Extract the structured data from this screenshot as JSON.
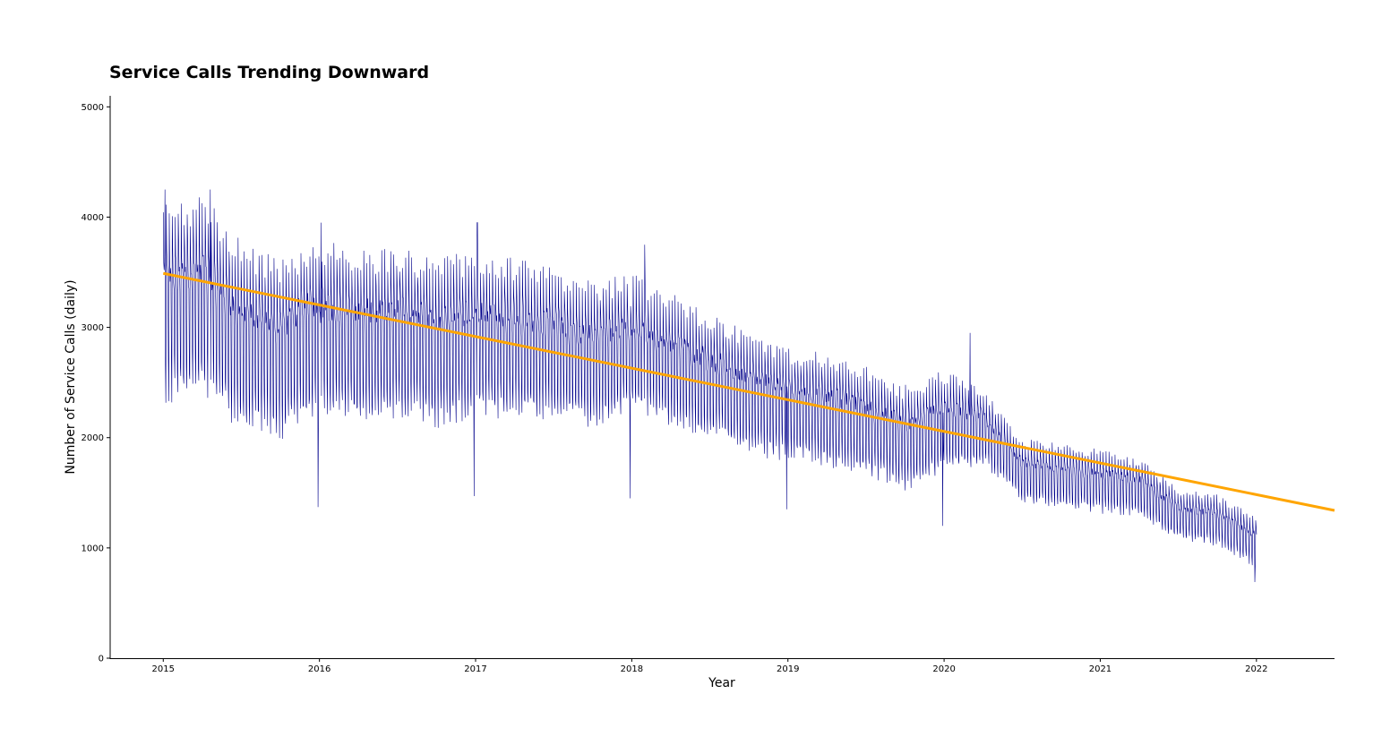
{
  "chart_data": {
    "type": "line",
    "title": "Service Calls Trending Downward",
    "xlabel": "Year",
    "ylabel": "Number of Service Calls (daily)",
    "xlim": [
      2014.66,
      2022.5
    ],
    "ylim": [
      0,
      5100
    ],
    "x_ticks": [
      2015,
      2016,
      2017,
      2018,
      2019,
      2020,
      2021,
      2022
    ],
    "x_tick_labels": [
      "2015",
      "2016",
      "2017",
      "2018",
      "2019",
      "2020",
      "2021",
      "2022"
    ],
    "y_ticks": [
      0,
      1000,
      2000,
      3000,
      4000,
      5000
    ],
    "y_tick_labels": [
      "0",
      "1000",
      "2000",
      "3000",
      "4000",
      "5000"
    ],
    "grid": false,
    "series": [
      {
        "role": "daily",
        "color": "#00008b",
        "x_start": "2015-01-01",
        "x_end": "2022-01-01",
        "weekly_oscillation": true,
        "baseline_by_month": [
          [
            "2015-01",
            3200
          ],
          [
            "2015-04",
            3300
          ],
          [
            "2015-07",
            2900
          ],
          [
            "2015-10",
            2800
          ],
          [
            "2016-01",
            3000
          ],
          [
            "2016-04",
            2900
          ],
          [
            "2016-07",
            2950
          ],
          [
            "2016-10",
            2850
          ],
          [
            "2017-01",
            2950
          ],
          [
            "2017-04",
            2900
          ],
          [
            "2017-07",
            2850
          ],
          [
            "2017-10",
            2750
          ],
          [
            "2018-01",
            2850
          ],
          [
            "2018-04",
            2700
          ],
          [
            "2018-07",
            2550
          ],
          [
            "2018-10",
            2400
          ],
          [
            "2019-01",
            2300
          ],
          [
            "2019-04",
            2250
          ],
          [
            "2019-07",
            2150
          ],
          [
            "2019-10",
            2000
          ],
          [
            "2020-01",
            2150
          ],
          [
            "2020-04",
            2100
          ],
          [
            "2020-07",
            1700
          ],
          [
            "2020-10",
            1650
          ],
          [
            "2021-01",
            1600
          ],
          [
            "2021-04",
            1550
          ],
          [
            "2021-07",
            1300
          ],
          [
            "2021-10",
            1250
          ],
          [
            "2022-01",
            1050
          ]
        ],
        "amplitude_by_month": [
          [
            "2015-01",
            800
          ],
          [
            "2016-01",
            700
          ],
          [
            "2017-01",
            650
          ],
          [
            "2018-01",
            550
          ],
          [
            "2019-01",
            450
          ],
          [
            "2020-01",
            400
          ],
          [
            "2020-06",
            250
          ],
          [
            "2021-01",
            250
          ],
          [
            "2021-07",
            200
          ],
          [
            "2022-01",
            200
          ]
        ],
        "notable_points": [
          [
            "2015-01-05",
            4250
          ],
          [
            "2015-04-20",
            4250
          ],
          [
            "2015-12-28",
            1370
          ],
          [
            "2016-01-05",
            3950
          ],
          [
            "2017-01-05",
            3950
          ],
          [
            "2016-12-28",
            1470
          ],
          [
            "2017-12-28",
            1450
          ],
          [
            "2018-02-01",
            3750
          ],
          [
            "2018-12-28",
            1350
          ],
          [
            "2019-12-28",
            1200
          ],
          [
            "2020-03-01",
            2950
          ],
          [
            "2021-12-28",
            690
          ]
        ]
      },
      {
        "role": "trend",
        "color": "#ffa500",
        "x": [
          2015.0,
          2022.5
        ],
        "y": [
          3490,
          1340
        ]
      }
    ]
  }
}
